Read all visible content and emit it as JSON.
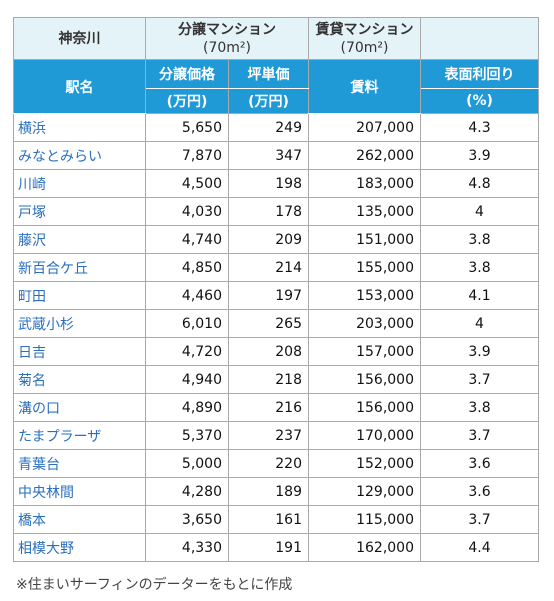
{
  "header": {
    "region": "神奈川",
    "groups": [
      {
        "title": "分譲マンション",
        "sub": "(70m²)"
      },
      {
        "title": "賃貸マンション",
        "sub": "(70m²)"
      }
    ]
  },
  "columns": {
    "station": "駅名",
    "price": {
      "title": "分譲価格",
      "unit": "(万円)"
    },
    "tsubo": {
      "title": "坪単価",
      "unit": "(万円)"
    },
    "rent": "賃料",
    "yield": {
      "title": "表面利回り",
      "unit": "(%)"
    }
  },
  "rows": [
    [
      "横浜",
      "5,650",
      "249",
      "207,000",
      "4.3"
    ],
    [
      "みなとみらい",
      "7,870",
      "347",
      "262,000",
      "3.9"
    ],
    [
      "川崎",
      "4,500",
      "198",
      "183,000",
      "4.8"
    ],
    [
      "戸塚",
      "4,030",
      "178",
      "135,000",
      "4"
    ],
    [
      "藤沢",
      "4,740",
      "209",
      "151,000",
      "3.8"
    ],
    [
      "新百合ケ丘",
      "4,850",
      "214",
      "155,000",
      "3.8"
    ],
    [
      "町田",
      "4,460",
      "197",
      "153,000",
      "4.1"
    ],
    [
      "武蔵小杉",
      "6,010",
      "265",
      "203,000",
      "4"
    ],
    [
      "日吉",
      "4,720",
      "208",
      "157,000",
      "3.9"
    ],
    [
      "菊名",
      "4,940",
      "218",
      "156,000",
      "3.7"
    ],
    [
      "溝の口",
      "4,890",
      "216",
      "156,000",
      "3.8"
    ],
    [
      "たまプラーザ",
      "5,370",
      "237",
      "170,000",
      "3.7"
    ],
    [
      "青葉台",
      "5,000",
      "220",
      "152,000",
      "3.6"
    ],
    [
      "中央林間",
      "4,280",
      "189",
      "129,000",
      "3.6"
    ],
    [
      "橋本",
      "3,650",
      "161",
      "115,000",
      "3.7"
    ],
    [
      "相模大野",
      "4,330",
      "191",
      "162,000",
      "4.4"
    ]
  ],
  "footnote": "※住まいサーフィンのデーターをもとに作成"
}
